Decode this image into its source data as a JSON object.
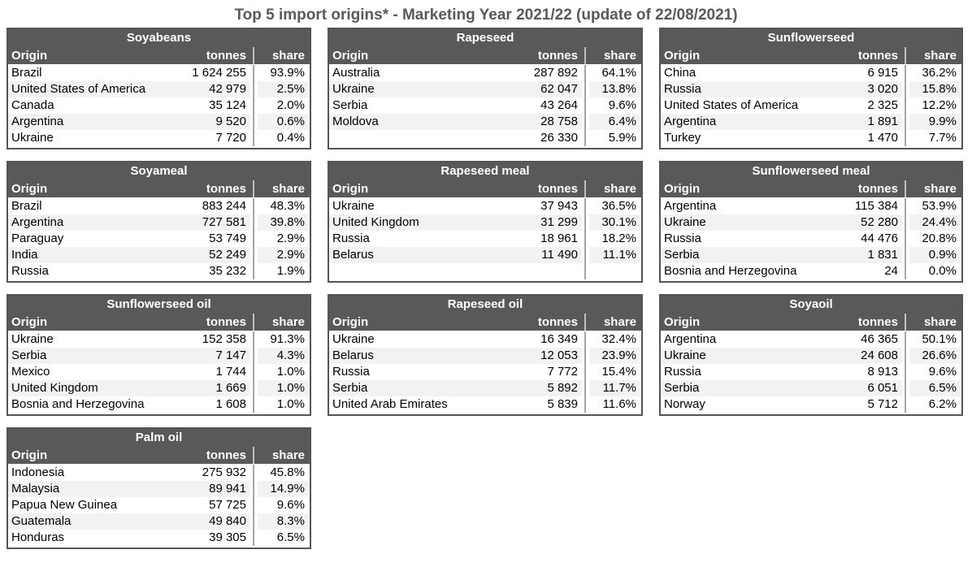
{
  "title": "Top 5 import origins* - Marketing Year 2021/22 (update of 22/08/2021)",
  "colors": {
    "header_bg": "#595959",
    "header_text": "#ffffff",
    "stripe_row": "#f2f2f2",
    "divider_line": "#a6a6a6",
    "title_text": "#595959"
  },
  "chart_data": [
    {
      "type": "table",
      "title": "Soyabeans",
      "columns": [
        "Origin",
        "tonnes",
        "share"
      ],
      "rows": [
        [
          "Brazil",
          "1 624 255",
          "93.9%"
        ],
        [
          "United States of America",
          "42 979",
          "2.5%"
        ],
        [
          "Canada",
          "35 124",
          "2.0%"
        ],
        [
          "Argentina",
          "9 520",
          "0.6%"
        ],
        [
          "Ukraine",
          "7 720",
          "0.4%"
        ]
      ]
    },
    {
      "type": "table",
      "title": "Rapeseed",
      "columns": [
        "Origin",
        "tonnes",
        "share"
      ],
      "rows": [
        [
          "Australia",
          "287 892",
          "64.1%"
        ],
        [
          "Ukraine",
          "62 047",
          "13.8%"
        ],
        [
          "Serbia",
          "43 264",
          "9.6%"
        ],
        [
          "Moldova",
          "28 758",
          "6.4%"
        ],
        [
          "",
          "26 330",
          "5.9%"
        ]
      ]
    },
    {
      "type": "table",
      "title": "Sunflowerseed",
      "columns": [
        "Origin",
        "tonnes",
        "share"
      ],
      "rows": [
        [
          "China",
          "6 915",
          "36.2%"
        ],
        [
          "Russia",
          "3 020",
          "15.8%"
        ],
        [
          "United States of America",
          "2 325",
          "12.2%"
        ],
        [
          "Argentina",
          "1 891",
          "9.9%"
        ],
        [
          "Turkey",
          "1 470",
          "7.7%"
        ]
      ]
    },
    {
      "type": "table",
      "title": "Soyameal",
      "columns": [
        "Origin",
        "tonnes",
        "share"
      ],
      "rows": [
        [
          "Brazil",
          "883 244",
          "48.3%"
        ],
        [
          "Argentina",
          "727 581",
          "39.8%"
        ],
        [
          "Paraguay",
          "53 749",
          "2.9%"
        ],
        [
          "India",
          "52 249",
          "2.9%"
        ],
        [
          "Russia",
          "35 232",
          "1.9%"
        ]
      ]
    },
    {
      "type": "table",
      "title": "Rapeseed meal",
      "columns": [
        "Origin",
        "tonnes",
        "share"
      ],
      "rows": [
        [
          "Ukraine",
          "37 943",
          "36.5%"
        ],
        [
          "United Kingdom",
          "31 299",
          "30.1%"
        ],
        [
          "Russia",
          "18 961",
          "18.2%"
        ],
        [
          "Belarus",
          "11 490",
          "11.1%"
        ],
        [
          "",
          "",
          ""
        ]
      ]
    },
    {
      "type": "table",
      "title": "Sunflowerseed meal",
      "columns": [
        "Origin",
        "tonnes",
        "share"
      ],
      "rows": [
        [
          "Argentina",
          "115 384",
          "53.9%"
        ],
        [
          "Ukraine",
          "52 280",
          "24.4%"
        ],
        [
          "Russia",
          "44 476",
          "20.8%"
        ],
        [
          "Serbia",
          "1 831",
          "0.9%"
        ],
        [
          "Bosnia and Herzegovina",
          "24",
          "0.0%"
        ]
      ]
    },
    {
      "type": "table",
      "title": "Sunflowerseed oil",
      "columns": [
        "Origin",
        "tonnes",
        "share"
      ],
      "rows": [
        [
          "Ukraine",
          "152 358",
          "91.3%"
        ],
        [
          "Serbia",
          "7 147",
          "4.3%"
        ],
        [
          "Mexico",
          "1 744",
          "1.0%"
        ],
        [
          "United Kingdom",
          "1 669",
          "1.0%"
        ],
        [
          "Bosnia and Herzegovina",
          "1 608",
          "1.0%"
        ]
      ]
    },
    {
      "type": "table",
      "title": "Rapeseed oil",
      "columns": [
        "Origin",
        "tonnes",
        "share"
      ],
      "rows": [
        [
          "Ukraine",
          "16 349",
          "32.4%"
        ],
        [
          "Belarus",
          "12 053",
          "23.9%"
        ],
        [
          "Russia",
          "7 772",
          "15.4%"
        ],
        [
          "Serbia",
          "5 892",
          "11.7%"
        ],
        [
          "United Arab Emirates",
          "5 839",
          "11.6%"
        ]
      ]
    },
    {
      "type": "table",
      "title": "Soyaoil",
      "columns": [
        "Origin",
        "tonnes",
        "share"
      ],
      "rows": [
        [
          "Argentina",
          "46 365",
          "50.1%"
        ],
        [
          "Ukraine",
          "24 608",
          "26.6%"
        ],
        [
          "Russia",
          "8 913",
          "9.6%"
        ],
        [
          "Serbia",
          "6 051",
          "6.5%"
        ],
        [
          "Norway",
          "5 712",
          "6.2%"
        ]
      ]
    },
    {
      "type": "table",
      "title": "Palm oil",
      "columns": [
        "Origin",
        "tonnes",
        "share"
      ],
      "rows": [
        [
          "Indonesia",
          "275 932",
          "45.8%"
        ],
        [
          "Malaysia",
          "89 941",
          "14.9%"
        ],
        [
          "Papua New Guinea",
          "57 725",
          "9.6%"
        ],
        [
          "Guatemala",
          "49 840",
          "8.3%"
        ],
        [
          "Honduras",
          "39 305",
          "6.5%"
        ]
      ]
    }
  ]
}
